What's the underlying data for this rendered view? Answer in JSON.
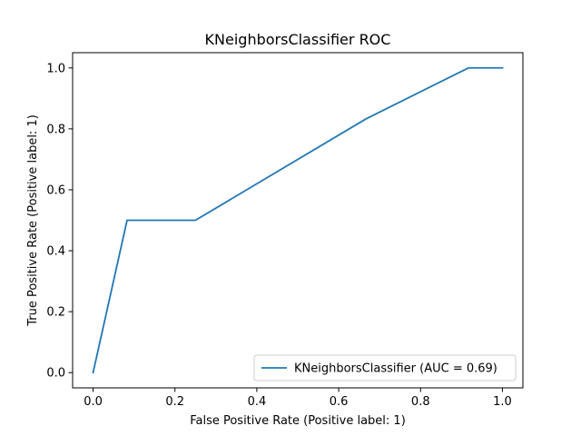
{
  "chart_data": {
    "type": "line",
    "title": "KNeighborsClassifier ROC",
    "xlabel": "False Positive Rate (Positive label: 1)",
    "ylabel": "True Positive Rate (Positive label: 1)",
    "xlim": [
      -0.05,
      1.05
    ],
    "ylim": [
      -0.05,
      1.05
    ],
    "xticks": [
      0.0,
      0.2,
      0.4,
      0.6,
      0.8,
      1.0
    ],
    "yticks": [
      0.0,
      0.2,
      0.4,
      0.6,
      0.8,
      1.0
    ],
    "xtick_labels": [
      "0.0",
      "0.2",
      "0.4",
      "0.6",
      "0.8",
      "1.0"
    ],
    "ytick_labels": [
      "0.0",
      "0.2",
      "0.4",
      "0.6",
      "0.8",
      "1.0"
    ],
    "grid": false,
    "legend_position": "lower-right",
    "series": [
      {
        "name": "KNeighborsClassifier (AUC = 0.69)",
        "color": "#1f77b4",
        "x": [
          0.0,
          0.083,
          0.25,
          0.667,
          0.917,
          1.0
        ],
        "y": [
          0.0,
          0.5,
          0.5,
          0.833,
          1.0,
          1.0
        ]
      }
    ]
  }
}
